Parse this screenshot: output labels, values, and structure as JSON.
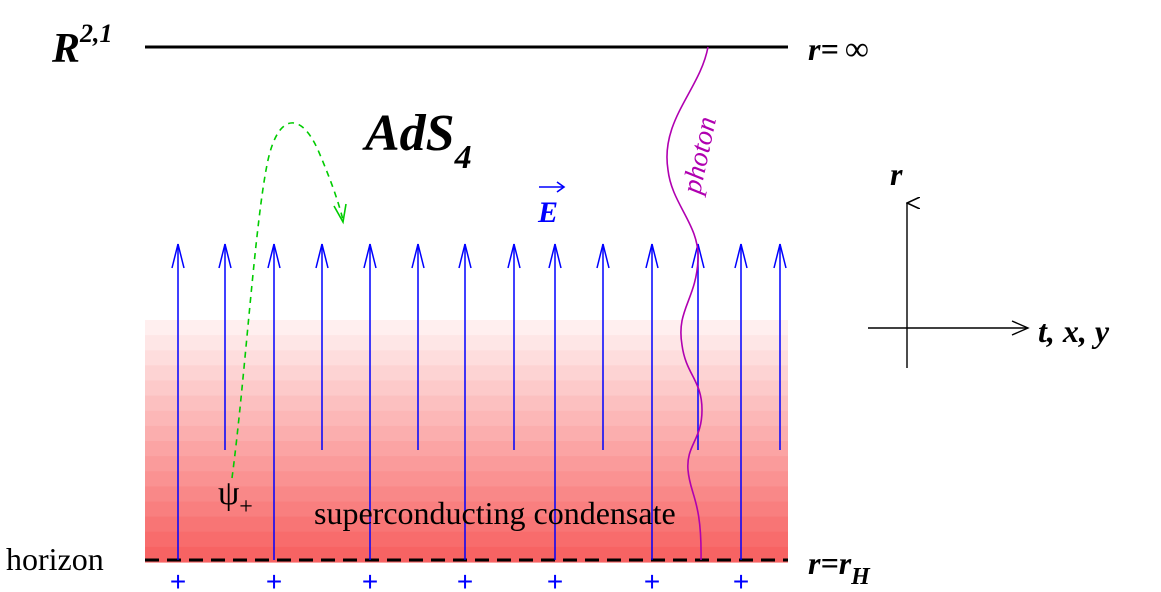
{
  "boundary": {
    "label_main": "R",
    "label_sup": "2,1",
    "r_label": "r=",
    "r_value": "∞"
  },
  "bulk": {
    "label_main": "AdS",
    "label_sub": "4"
  },
  "field": {
    "label": "E",
    "color": "#0000ff"
  },
  "photon": {
    "label": "photon",
    "color": "#b000b0"
  },
  "fermion": {
    "label_main": "ψ",
    "label_sub": "+",
    "color": "#00cc00"
  },
  "condensate": {
    "label": "superconducting condensate",
    "color": "#f86060"
  },
  "horizon": {
    "label": "horizon",
    "r_label": "r=r",
    "r_sub": "H",
    "charge_symbol": "+"
  },
  "axes": {
    "vertical_label": "r",
    "horizontal_label": "t, x, y"
  }
}
